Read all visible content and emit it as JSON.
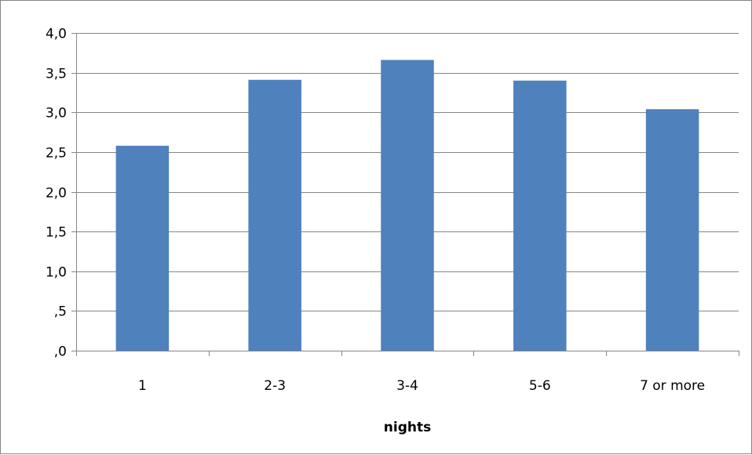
{
  "chart_data": {
    "type": "bar",
    "title": "",
    "xlabel": "nights",
    "ylabel": "",
    "categories": [
      "1",
      "2-3",
      "3-4",
      "5-6",
      "7 or more"
    ],
    "values": [
      2.58,
      3.41,
      3.66,
      3.4,
      3.04
    ],
    "ylim": [
      0,
      4.0
    ],
    "yticks": [
      0,
      0.5,
      1.0,
      1.5,
      2.0,
      2.5,
      3.0,
      3.5,
      4.0
    ],
    "ytick_labels": [
      ",0",
      ",5",
      "1,0",
      "1,5",
      "2,0",
      "2,5",
      "3,0",
      "3,5",
      "4,0"
    ],
    "grid": true,
    "legend": "none",
    "bar_color": "#4F81BD",
    "gridline_color": "#868686",
    "axis_color": "#868686"
  }
}
